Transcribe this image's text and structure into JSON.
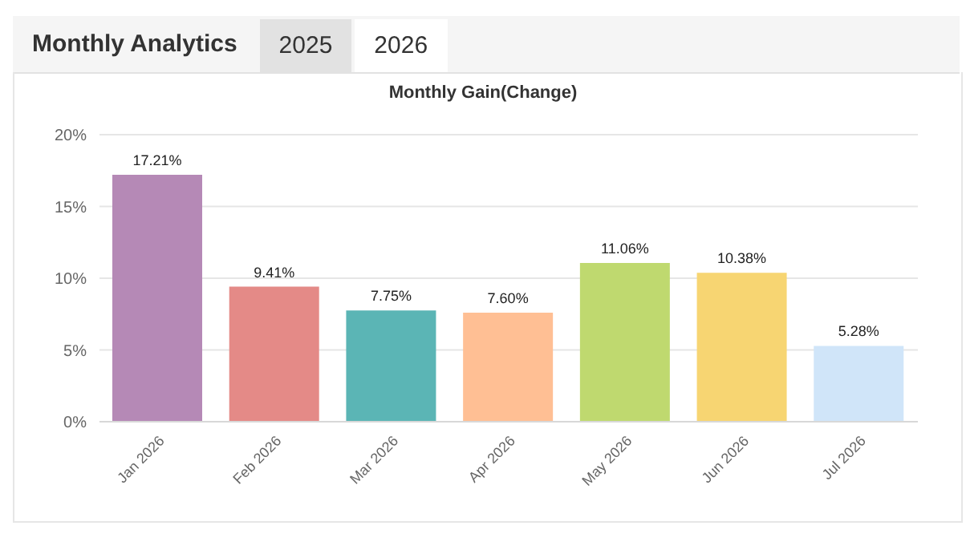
{
  "chart_data": {
    "type": "bar",
    "title": "Monthly Analytics",
    "subtitle": "Monthly Gain(Change)",
    "annotations": [
      "2025",
      "2026"
    ],
    "categories": [
      "Jan 2026",
      "Feb 2026",
      "Mar 2026",
      "Apr 2026",
      "May 2026",
      "Jun 2026",
      "Jul 2026"
    ],
    "values": [
      17.21,
      9.41,
      7.75,
      7.6,
      11.06,
      10.38,
      5.28
    ],
    "value_labels": [
      "17.21%",
      "9.41%",
      "7.75%",
      "7.60%",
      "11.06%",
      "10.38%",
      "5.28%"
    ],
    "colors": [
      "#b589b6",
      "#e48a87",
      "#5bb5b5",
      "#ffbf94",
      "#bfd96f",
      "#f7d572",
      "#d0e5f9"
    ],
    "ylim": [
      0,
      20
    ],
    "yticks": [
      {
        "value": 0,
        "label": "0%"
      },
      {
        "value": 5,
        "label": "5%"
      },
      {
        "value": 10,
        "label": "10%"
      },
      {
        "value": 15,
        "label": "15%"
      },
      {
        "value": 20,
        "label": "20%"
      }
    ],
    "grid": "y"
  }
}
